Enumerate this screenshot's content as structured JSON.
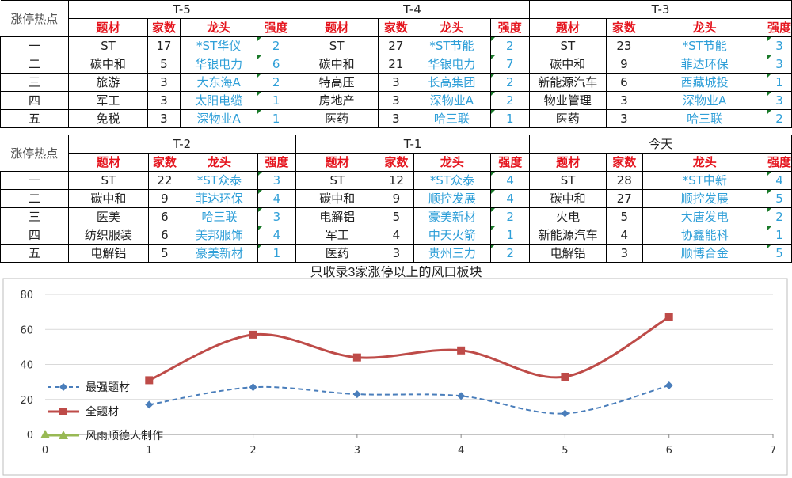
{
  "side_label": "涨停热点",
  "col_headers": [
    "题材",
    "家数",
    "龙头",
    "强度"
  ],
  "ranks": [
    "一",
    "二",
    "三",
    "四",
    "五"
  ],
  "table1": [
    {
      "period": "T-5",
      "rows": [
        {
          "theme": "ST",
          "count": "17",
          "leader": "*ST华仪",
          "strength": "2"
        },
        {
          "theme": "碳中和",
          "count": "5",
          "leader": "华银电力",
          "strength": "6"
        },
        {
          "theme": "旅游",
          "count": "3",
          "leader": "大东海A",
          "strength": "2"
        },
        {
          "theme": "军工",
          "count": "3",
          "leader": "太阳电缆",
          "strength": "1"
        },
        {
          "theme": "免税",
          "count": "3",
          "leader": "深物业A",
          "strength": "1"
        }
      ]
    },
    {
      "period": "T-4",
      "rows": [
        {
          "theme": "ST",
          "count": "27",
          "leader": "*ST节能",
          "strength": "2"
        },
        {
          "theme": "碳中和",
          "count": "21",
          "leader": "华银电力",
          "strength": "7"
        },
        {
          "theme": "特高压",
          "count": "3",
          "leader": "长高集团",
          "strength": "2"
        },
        {
          "theme": "房地产",
          "count": "3",
          "leader": "深物业A",
          "strength": "2"
        },
        {
          "theme": "医药",
          "count": "3",
          "leader": "哈三联",
          "strength": "1"
        }
      ]
    },
    {
      "period": "T-3",
      "rows": [
        {
          "theme": "ST",
          "count": "23",
          "leader": "*ST节能",
          "strength": "3"
        },
        {
          "theme": "碳中和",
          "count": "9",
          "leader": "菲达环保",
          "strength": "3"
        },
        {
          "theme": "新能源汽车",
          "count": "6",
          "leader": "西藏城投",
          "strength": "1"
        },
        {
          "theme": "物业管理",
          "count": "3",
          "leader": "深物业A",
          "strength": "3"
        },
        {
          "theme": "医药",
          "count": "3",
          "leader": "哈三联",
          "strength": "2"
        }
      ]
    }
  ],
  "table2": [
    {
      "period": "T-2",
      "rows": [
        {
          "theme": "ST",
          "count": "22",
          "leader": "*ST众泰",
          "strength": "3"
        },
        {
          "theme": "碳中和",
          "count": "9",
          "leader": "菲达环保",
          "strength": "4"
        },
        {
          "theme": "医美",
          "count": "6",
          "leader": "哈三联",
          "strength": "3"
        },
        {
          "theme": "纺织服装",
          "count": "6",
          "leader": "美邦服饰",
          "strength": "4"
        },
        {
          "theme": "电解铝",
          "count": "5",
          "leader": "豪美新材",
          "strength": "1"
        }
      ]
    },
    {
      "period": "T-1",
      "rows": [
        {
          "theme": "ST",
          "count": "12",
          "leader": "*ST众泰",
          "strength": "4"
        },
        {
          "theme": "碳中和",
          "count": "9",
          "leader": "顺控发展",
          "strength": "4"
        },
        {
          "theme": "电解铝",
          "count": "5",
          "leader": "豪美新材",
          "strength": "2"
        },
        {
          "theme": "军工",
          "count": "4",
          "leader": "中天火箭",
          "strength": "1"
        },
        {
          "theme": "医药",
          "count": "3",
          "leader": "贵州三力",
          "strength": "2"
        }
      ]
    },
    {
      "period": "今天",
      "rows": [
        {
          "theme": "ST",
          "count": "28",
          "leader": "*ST中新",
          "strength": "4"
        },
        {
          "theme": "碳中和",
          "count": "27",
          "leader": "顺控发展",
          "strength": "5"
        },
        {
          "theme": "火电",
          "count": "5",
          "leader": "大唐发电",
          "strength": "2"
        },
        {
          "theme": "新能源汽车",
          "count": "4",
          "leader": "协鑫能科",
          "strength": "1"
        },
        {
          "theme": "电解铝",
          "count": "3",
          "leader": "顺博合金",
          "strength": "5"
        }
      ]
    }
  ],
  "chart_data": {
    "type": "line",
    "title": "只收录3家涨停以上的风口板块",
    "xlim": [
      0,
      7
    ],
    "ylim": [
      0,
      80
    ],
    "xticks": [
      0,
      1,
      2,
      3,
      4,
      5,
      6,
      7
    ],
    "yticks": [
      0,
      20,
      40,
      60,
      80
    ],
    "grid": "horizontal",
    "legend_position": "left",
    "series": [
      {
        "name": "最强题材",
        "color": "#4a7ebb",
        "style": "dashed",
        "marker": "diamond",
        "x": [
          1,
          2,
          3,
          4,
          5,
          6
        ],
        "values": [
          17,
          27,
          23,
          22,
          12,
          28
        ]
      },
      {
        "name": "全题材",
        "color": "#be4b48",
        "style": "solid",
        "marker": "square",
        "x": [
          1,
          2,
          3,
          4,
          5,
          6
        ],
        "values": [
          31,
          57,
          44,
          48,
          33,
          67
        ]
      },
      {
        "name": "风雨顺德人制作",
        "color": "#98b954",
        "style": "solid",
        "marker": "triangle",
        "x": [
          0
        ],
        "values": [
          0
        ]
      }
    ]
  }
}
